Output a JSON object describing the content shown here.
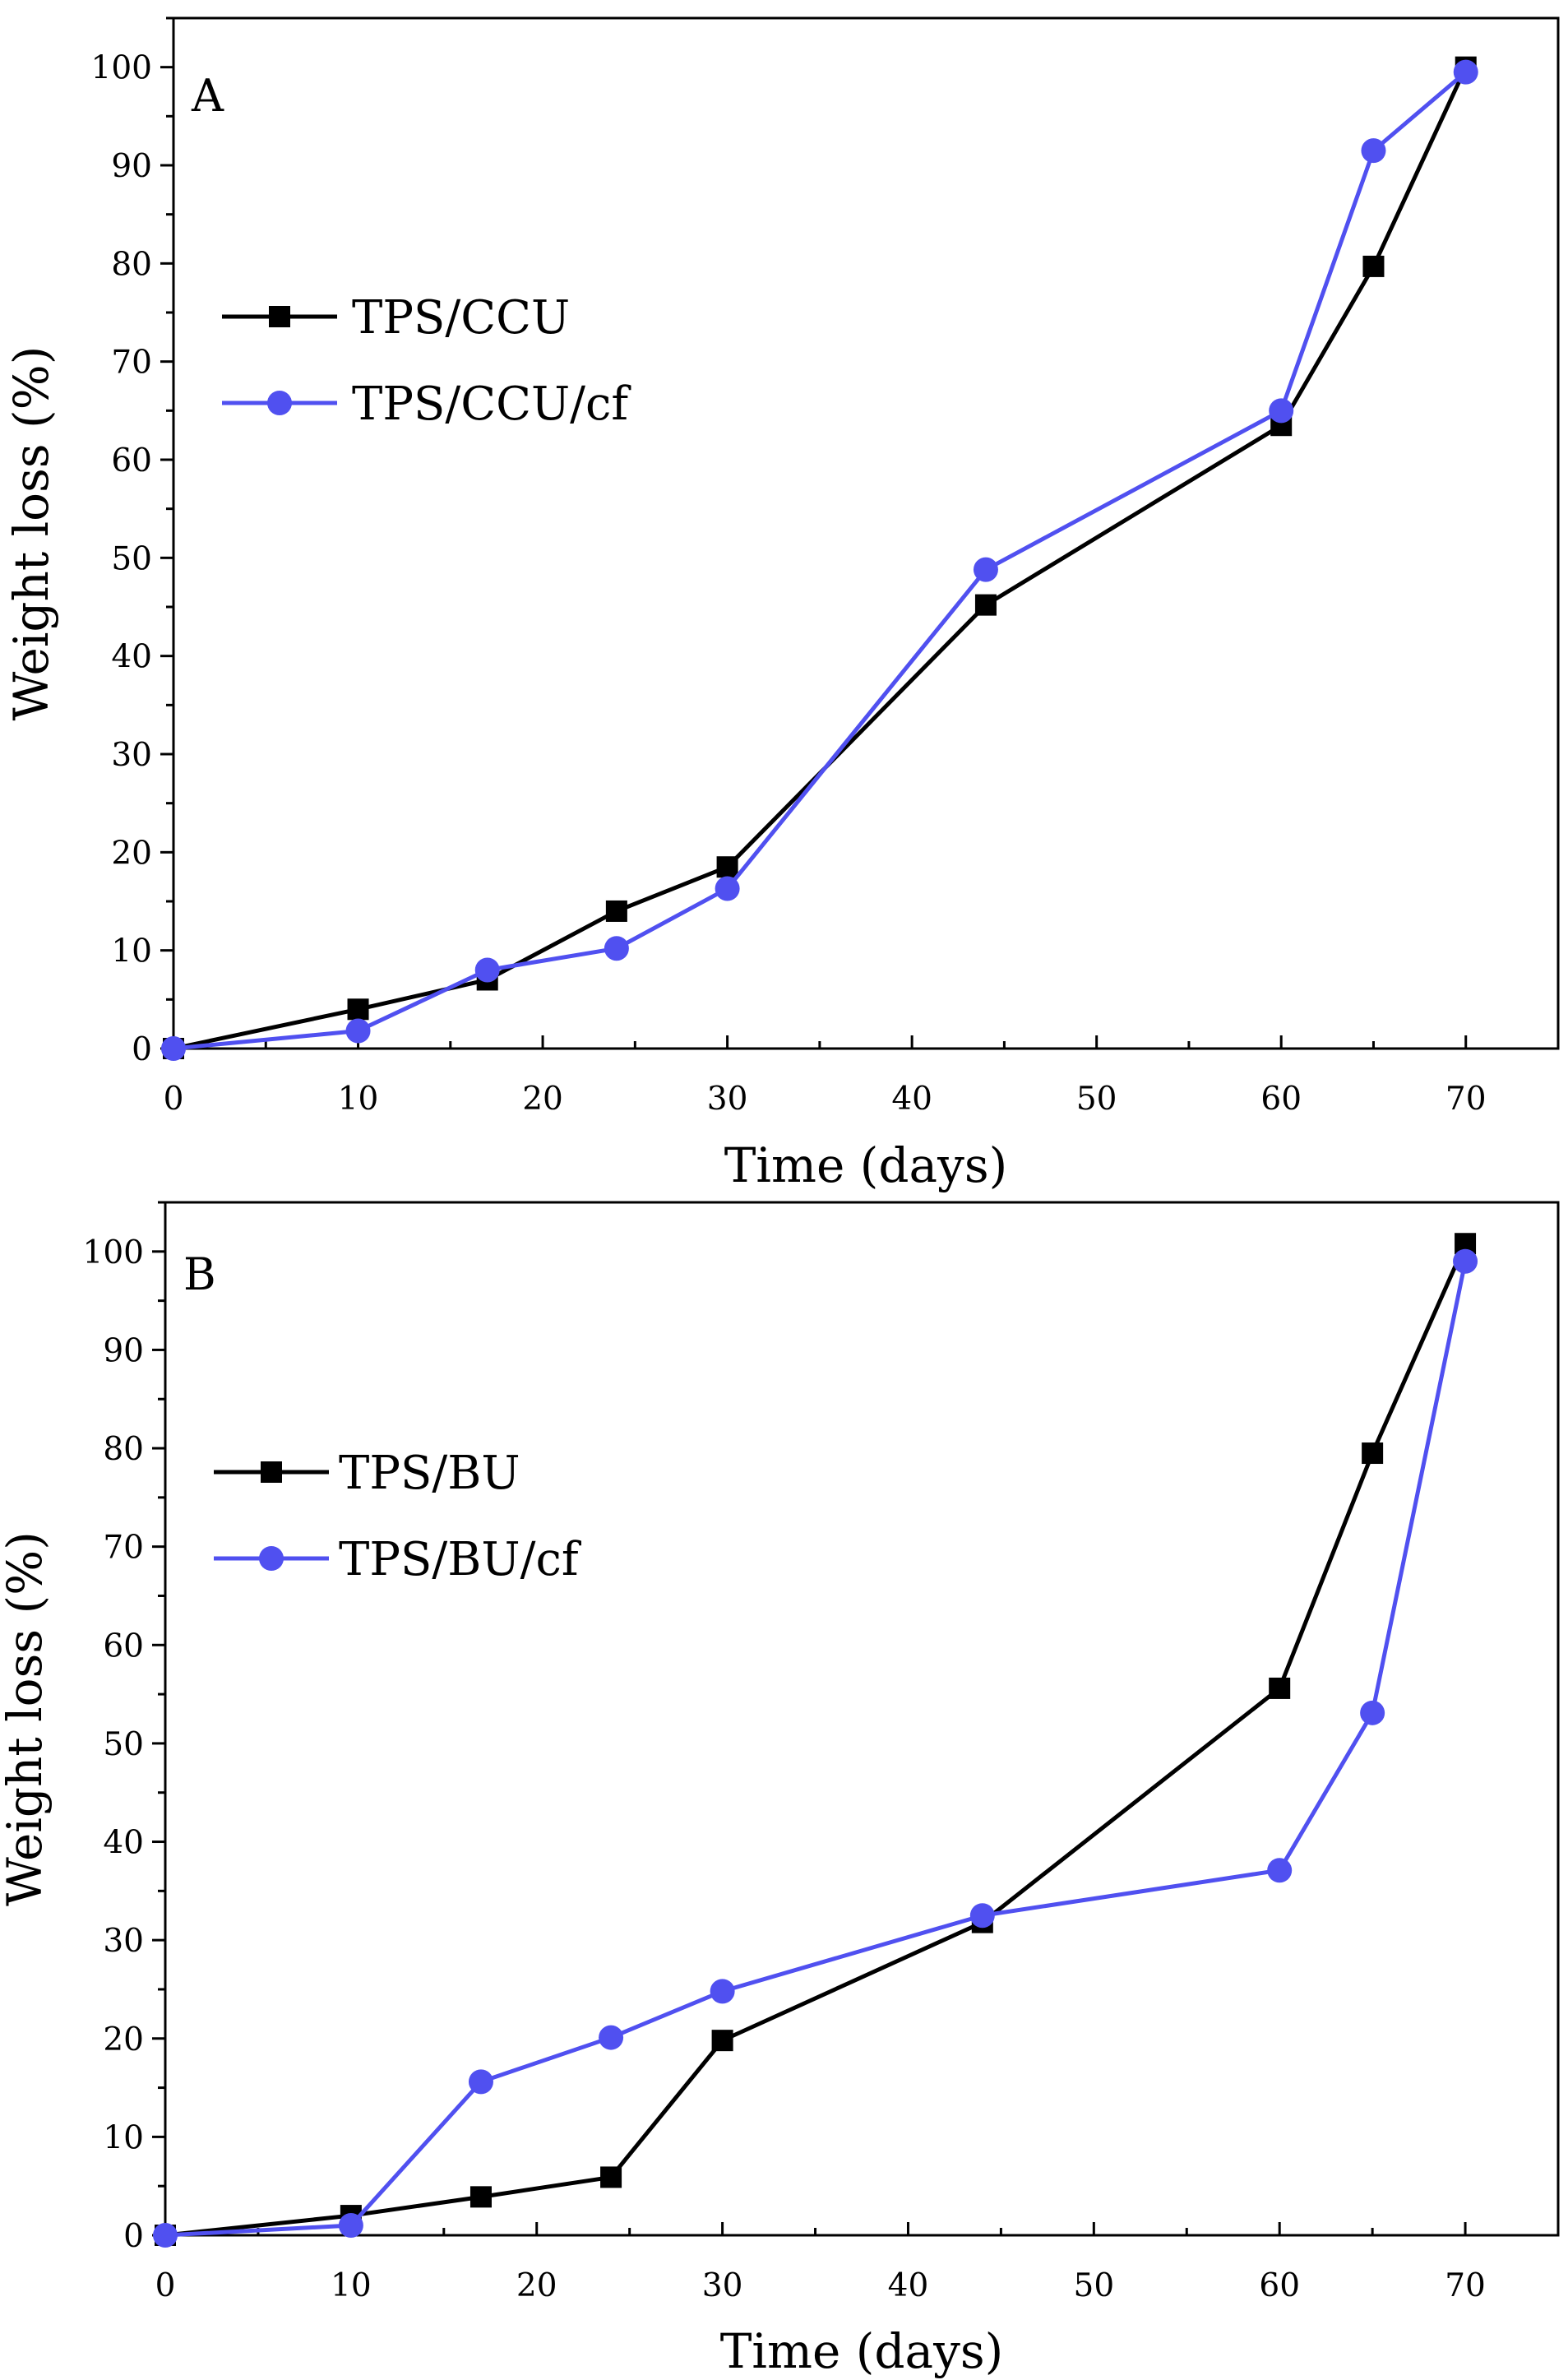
{
  "chart_data": [
    {
      "type": "line",
      "panel_label": "A",
      "xlabel": "Time (days)",
      "ylabel": "Weight loss (%)",
      "xlim": [
        0,
        75
      ],
      "ylim": [
        0,
        105
      ],
      "x_ticks": [
        0,
        10,
        20,
        30,
        40,
        50,
        60,
        70
      ],
      "y_ticks": [
        0,
        10,
        20,
        30,
        40,
        50,
        60,
        70,
        80,
        90,
        100
      ],
      "legend_position": "upper-left",
      "series": [
        {
          "name": "TPS/CCU",
          "marker": "square",
          "color": "#000000",
          "x": [
            0,
            10,
            17,
            24,
            30,
            44,
            60,
            65,
            70
          ],
          "y": [
            0,
            4,
            7,
            14,
            18.5,
            45.2,
            63.5,
            79.7,
            100
          ]
        },
        {
          "name": "TPS/CCU/cf",
          "marker": "circle",
          "color": "#5050F0",
          "x": [
            0,
            10,
            17,
            24,
            30,
            44,
            60,
            65,
            70
          ],
          "y": [
            0,
            1.8,
            8,
            10.2,
            16.3,
            48.8,
            65,
            91.5,
            99.5
          ]
        }
      ]
    },
    {
      "type": "line",
      "panel_label": "B",
      "xlabel": "Time (days)",
      "ylabel": "Weight loss (%)",
      "xlim": [
        0,
        75
      ],
      "ylim": [
        0,
        105
      ],
      "x_ticks": [
        0,
        10,
        20,
        30,
        40,
        50,
        60,
        70
      ],
      "y_ticks": [
        0,
        10,
        20,
        30,
        40,
        50,
        60,
        70,
        80,
        90,
        100
      ],
      "legend_position": "upper-left",
      "series": [
        {
          "name": "TPS/BU",
          "marker": "square",
          "color": "#000000",
          "x": [
            0,
            10,
            17,
            24,
            30,
            44,
            60,
            65,
            70
          ],
          "y": [
            0,
            2,
            3.9,
            5.9,
            19.8,
            31.8,
            55.6,
            79.5,
            100.8
          ]
        },
        {
          "name": "TPS/BU/cf",
          "marker": "circle",
          "color": "#5050F0",
          "x": [
            0,
            10,
            17,
            24,
            30,
            44,
            60,
            65,
            70
          ],
          "y": [
            0,
            1,
            15.6,
            20.1,
            24.8,
            32.5,
            37.1,
            53.1,
            99
          ]
        }
      ]
    }
  ]
}
